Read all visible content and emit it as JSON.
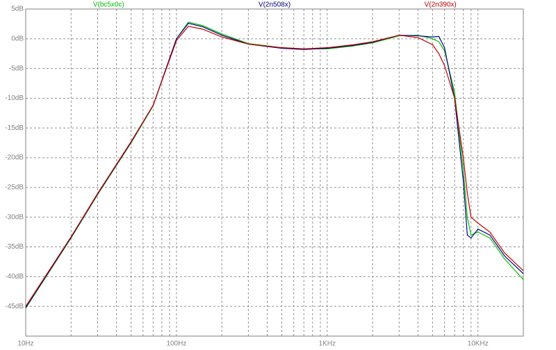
{
  "chart_data": {
    "type": "line",
    "x": [
      10,
      20,
      30,
      50,
      70,
      100,
      120,
      150,
      200,
      300,
      500,
      700,
      1000,
      1500,
      2000,
      3000,
      4000,
      5000,
      5500,
      6000,
      7000,
      8000,
      8500,
      9000,
      10000,
      12000,
      15000,
      20000
    ],
    "series": [
      {
        "name": "V(bc5x0c)",
        "color": "#00c000",
        "values": [
          -45.3,
          -33.5,
          -26.2,
          -17.5,
          -11.3,
          0,
          2.8,
          2.2,
          0.8,
          -0.8,
          -1.5,
          -1.7,
          -1.7,
          -1.2,
          -0.7,
          0.5,
          0.6,
          0.0,
          -0.5,
          -2,
          -9,
          -22,
          -30,
          -33,
          -32.5,
          -33.5,
          -37,
          -40.5
        ]
      },
      {
        "name": "V(2n508x)",
        "color": "#000080",
        "values": [
          -45.2,
          -33.4,
          -26.1,
          -17.4,
          -11.2,
          0,
          2.6,
          2.0,
          0.6,
          -0.9,
          -1.6,
          -1.8,
          -1.6,
          -1.1,
          -0.6,
          0.6,
          0.5,
          0.3,
          0.4,
          -1.5,
          -10,
          -24,
          -33,
          -33.5,
          -32,
          -33,
          -36.5,
          -39.5
        ]
      },
      {
        "name": "V(2n390x)",
        "color": "#c00000",
        "values": [
          -45.0,
          -33.3,
          -26.0,
          -17.3,
          -11.2,
          -0.3,
          2.1,
          1.6,
          0.3,
          -0.9,
          -1.5,
          -1.7,
          -1.5,
          -1.0,
          -0.5,
          0.6,
          0.2,
          -1.0,
          -2.5,
          -4.5,
          -10,
          -20,
          -26,
          -30,
          -31,
          -32.5,
          -36,
          -39
        ]
      }
    ],
    "xscale": "log",
    "xlim": [
      10,
      20000
    ],
    "ylim": [
      -50,
      5
    ],
    "xticks": [
      {
        "value": 10,
        "label": "10Hz"
      },
      {
        "value": 100,
        "label": "100Hz"
      },
      {
        "value": 1000,
        "label": "1KHz"
      },
      {
        "value": 10000,
        "label": "10KHz"
      }
    ],
    "x_minor_ticks": [
      20,
      30,
      40,
      50,
      60,
      70,
      80,
      90,
      200,
      300,
      400,
      500,
      600,
      700,
      800,
      900,
      2000,
      3000,
      4000,
      5000,
      6000,
      7000,
      8000,
      9000
    ],
    "yticks": [
      {
        "value": 5,
        "label": "5dB"
      },
      {
        "value": 0,
        "label": "0dB"
      },
      {
        "value": -5,
        "label": "-5dB"
      },
      {
        "value": -10,
        "label": "-10dB"
      },
      {
        "value": -15,
        "label": "-15dB"
      },
      {
        "value": -20,
        "label": "-20dB"
      },
      {
        "value": -25,
        "label": "-25dB"
      },
      {
        "value": -30,
        "label": "-30dB"
      },
      {
        "value": -35,
        "label": "-35dB"
      },
      {
        "value": -40,
        "label": "-40dB"
      },
      {
        "value": -45,
        "label": "-45dB"
      }
    ],
    "grid": true
  }
}
